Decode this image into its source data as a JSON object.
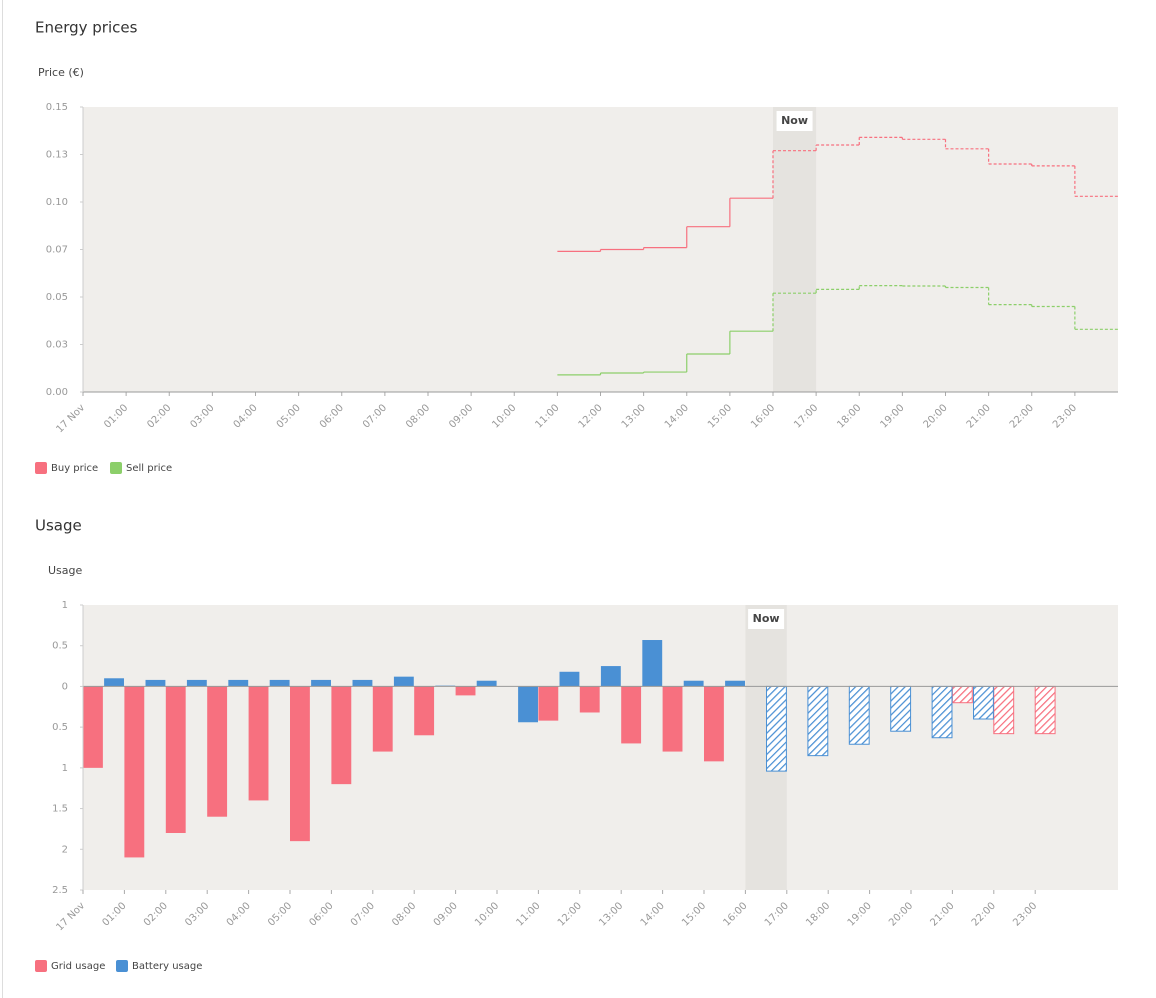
{
  "chart_data": [
    {
      "type": "line",
      "title": "Energy prices",
      "y_label": "Price (€)",
      "categories": [
        "17 Nov",
        "01:00",
        "02:00",
        "03:00",
        "04:00",
        "05:00",
        "06:00",
        "07:00",
        "08:00",
        "09:00",
        "10:00",
        "11:00",
        "12:00",
        "13:00",
        "14:00",
        "15:00",
        "16:00",
        "17:00",
        "18:00",
        "19:00",
        "20:00",
        "21:00",
        "22:00",
        "23:00"
      ],
      "series": [
        {
          "name": "Buy price",
          "color": "#f7707f",
          "values": [
            null,
            null,
            null,
            null,
            null,
            null,
            null,
            null,
            null,
            null,
            null,
            0.074,
            0.075,
            0.076,
            0.087,
            0.102,
            0.127,
            0.13,
            0.134,
            0.133,
            0.128,
            0.12,
            0.119,
            0.103
          ]
        },
        {
          "name": "Sell price",
          "color": "#8ccf6a",
          "values": [
            null,
            null,
            null,
            null,
            null,
            null,
            null,
            null,
            null,
            null,
            null,
            0.009,
            0.01,
            0.0105,
            0.02,
            0.032,
            0.052,
            0.054,
            0.056,
            0.0558,
            0.055,
            0.046,
            0.045,
            0.033
          ]
        }
      ],
      "ylim": [
        0,
        0.15
      ],
      "yticks": [
        {
          "value": 0,
          "label": "0.00"
        },
        {
          "value": 0.025,
          "label": "0.03"
        },
        0.05,
        {
          "value": 0.075,
          "label": "0.07"
        },
        {
          "value": 0.1,
          "label": "0.10"
        },
        {
          "value": 0.125,
          "label": "0.13"
        },
        0.15
      ],
      "annotation": {
        "text": "Now",
        "index": 16
      },
      "legend": "bottom-left"
    },
    {
      "type": "bar",
      "title": "Usage",
      "y_label": "Usage",
      "categories": [
        "17 Nov",
        "01:00",
        "02:00",
        "03:00",
        "04:00",
        "05:00",
        "06:00",
        "07:00",
        "08:00",
        "09:00",
        "10:00",
        "11:00",
        "12:00",
        "13:00",
        "14:00",
        "15:00",
        "16:00",
        "17:00",
        "18:00",
        "19:00",
        "20:00",
        "21:00",
        "22:00",
        "23:00"
      ],
      "series": [
        {
          "name": "Grid usage",
          "color": "#f7707f",
          "values": [
            -1.0,
            -2.1,
            -1.8,
            -1.6,
            -1.4,
            -1.9,
            -1.2,
            -0.8,
            -0.6,
            -0.11,
            null,
            -0.42,
            -0.32,
            -0.7,
            -0.8,
            -0.92,
            null,
            null,
            null,
            null,
            null,
            -0.2,
            -0.58,
            -0.58
          ]
        },
        {
          "name": "Battery usage",
          "color": "#4a90d4",
          "values": [
            0.1,
            0.08,
            0.08,
            0.08,
            0.08,
            0.08,
            0.08,
            0.12,
            0.01,
            0.07,
            -0.44,
            0.18,
            0.25,
            0.57,
            0.07,
            0.07,
            -1.04,
            -0.85,
            -0.71,
            -0.55,
            -0.63,
            -0.4,
            null,
            null
          ]
        }
      ],
      "ylim": [
        -2.5,
        1
      ],
      "yticks": [
        1,
        0.5,
        0,
        {
          "value": -0.5,
          "label": "0.5"
        },
        {
          "value": -1,
          "label": "1"
        },
        {
          "value": -1.5,
          "label": "1.5"
        },
        {
          "value": -2,
          "label": "2"
        },
        {
          "value": -2.5,
          "label": "2.5"
        }
      ],
      "annotation": {
        "text": "Now",
        "index": 16
      },
      "legend": "bottom-left"
    }
  ]
}
